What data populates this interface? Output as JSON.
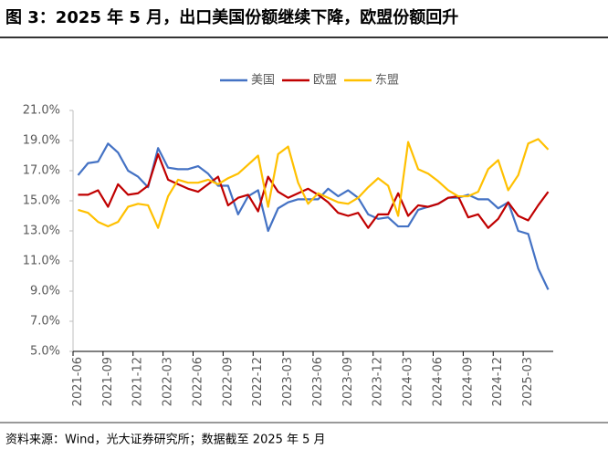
{
  "chart_data": {
    "type": "line",
    "title": "图 3：2025 年 5 月，出口美国份额继续下降，欧盟份额回升",
    "source": "资料来源：Wind，光大证券研究所；数据截至 2025 年 5 月",
    "categories": [
      "2021-06",
      null,
      null,
      "2021-09",
      null,
      null,
      "2021-12",
      null,
      null,
      "2022-03",
      null,
      null,
      "2022-06",
      null,
      null,
      "2022-09",
      null,
      null,
      "2022-12",
      null,
      null,
      "2023-03",
      null,
      null,
      "2023-06",
      null,
      null,
      "2023-09",
      null,
      null,
      "2023-12",
      null,
      null,
      "2024-03",
      null,
      null,
      "2024-06",
      null,
      null,
      "2024-09",
      null,
      null,
      "2024-12",
      null,
      null,
      "2025-03",
      null,
      null
    ],
    "series": [
      {
        "name": "美国",
        "color": "#4472c4",
        "values": [
          16.7,
          17.5,
          17.6,
          18.8,
          18.2,
          17.0,
          16.6,
          15.9,
          18.5,
          17.2,
          17.1,
          17.1,
          17.3,
          16.8,
          16.0,
          16.0,
          14.1,
          15.3,
          15.7,
          13.0,
          14.5,
          14.9,
          15.1,
          15.1,
          15.1,
          15.8,
          15.3,
          15.7,
          15.2,
          14.1,
          13.8,
          13.9,
          13.3,
          13.3,
          14.4,
          14.6,
          14.8,
          15.2,
          15.2,
          15.4,
          15.1,
          15.1,
          14.5,
          14.9,
          13.0,
          12.8,
          10.5,
          9.1
        ]
      },
      {
        "name": "欧盟",
        "color": "#c00000",
        "values": [
          15.4,
          15.4,
          15.7,
          14.6,
          16.1,
          15.4,
          15.5,
          16.0,
          18.1,
          16.4,
          16.1,
          15.8,
          15.6,
          16.1,
          16.6,
          14.7,
          15.2,
          15.4,
          14.3,
          16.6,
          15.6,
          15.2,
          15.5,
          15.8,
          15.4,
          14.9,
          14.2,
          14.0,
          14.2,
          13.2,
          14.1,
          14.1,
          15.5,
          14.0,
          14.7,
          14.6,
          14.8,
          15.2,
          15.3,
          13.9,
          14.1,
          13.2,
          13.8,
          14.9,
          14.0,
          13.7,
          14.7,
          15.6
        ]
      },
      {
        "name": "东盟",
        "color": "#ffc000",
        "values": [
          14.4,
          14.2,
          13.6,
          13.3,
          13.6,
          14.6,
          14.8,
          14.7,
          13.2,
          15.3,
          16.4,
          16.2,
          16.2,
          16.4,
          16.1,
          16.5,
          16.8,
          17.4,
          18.0,
          14.6,
          18.1,
          18.6,
          16.2,
          14.8,
          15.5,
          15.2,
          14.9,
          14.8,
          15.2,
          15.9,
          16.5,
          16.0,
          14.0,
          18.9,
          17.1,
          16.8,
          16.3,
          15.7,
          15.3,
          15.3,
          15.6,
          17.1,
          17.7,
          15.7,
          16.7,
          18.8,
          19.1,
          18.4
        ]
      }
    ],
    "ylim": [
      5,
      21
    ],
    "yticks": [
      {
        "value": 5,
        "label": "5.0%"
      },
      {
        "value": 7,
        "label": "7.0%"
      },
      {
        "value": 9,
        "label": "9.0%"
      },
      {
        "value": 11,
        "label": "11.0%"
      },
      {
        "value": 13,
        "label": "13.0%"
      },
      {
        "value": 15,
        "label": "15.0%"
      },
      {
        "value": 17,
        "label": "17.0%"
      },
      {
        "value": 19,
        "label": "19.0%"
      },
      {
        "value": 21,
        "label": "21.0%"
      }
    ],
    "grid": false
  }
}
